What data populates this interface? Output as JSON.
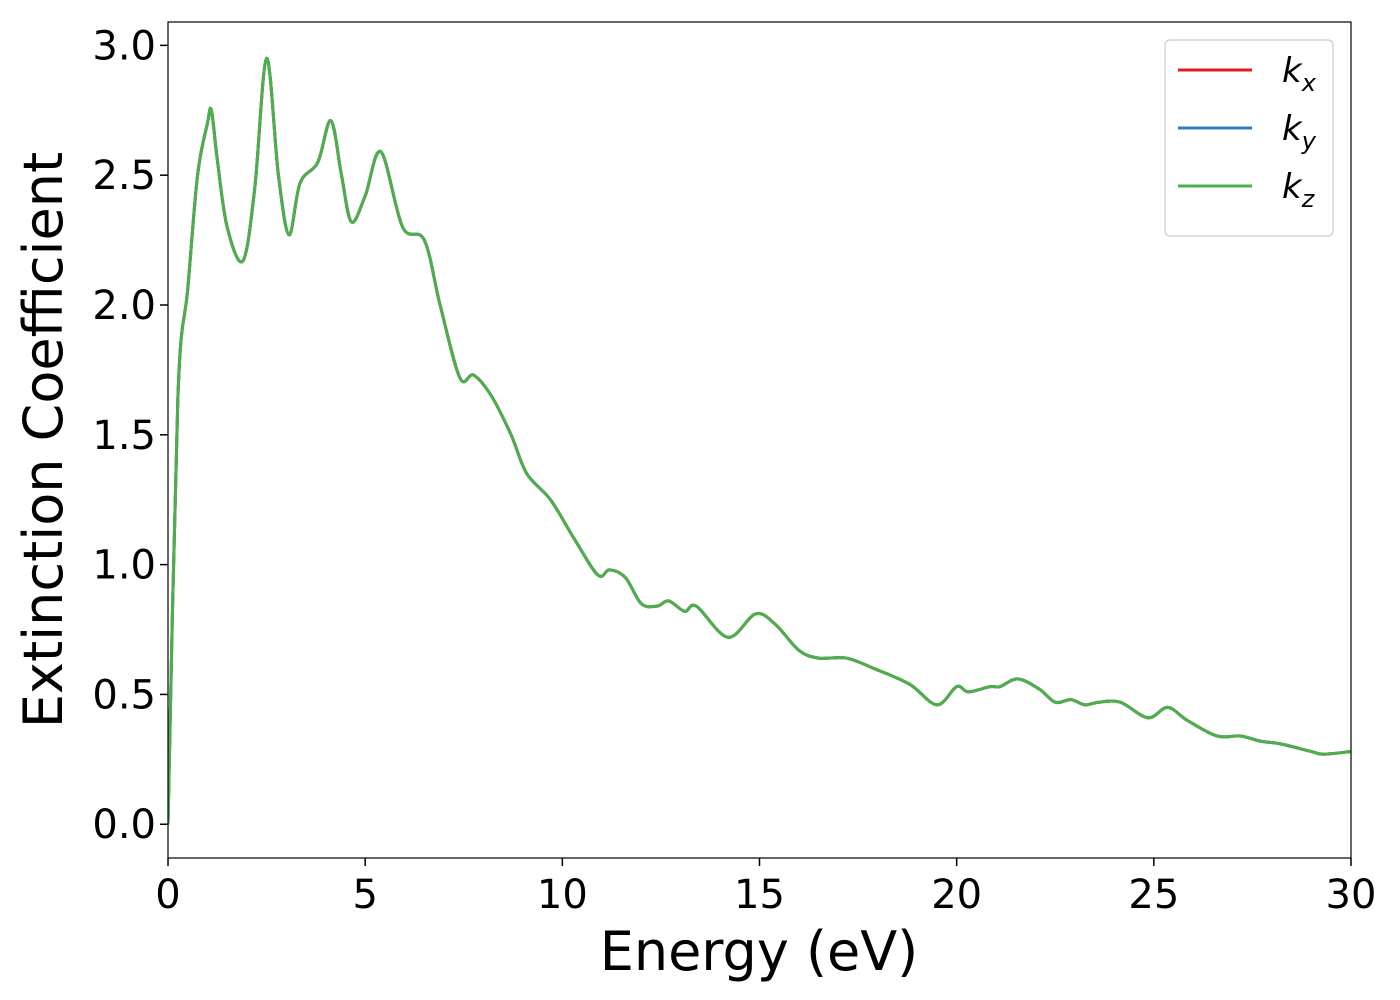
{
  "chart_data": {
    "type": "line",
    "x_label": "Energy (eV)",
    "y_label": "Extinction Coefficient",
    "x": [
      0,
      0.25,
      0.5,
      0.75,
      1.0,
      1.1,
      1.25,
      1.5,
      1.9,
      2.2,
      2.5,
      2.8,
      3.07,
      3.35,
      3.8,
      4.13,
      4.4,
      4.65,
      5.0,
      5.4,
      5.95,
      6.5,
      6.9,
      7.4,
      7.75,
      8.2,
      8.7,
      9.1,
      9.7,
      10.3,
      10.9,
      11.2,
      11.6,
      12.0,
      12.4,
      12.7,
      13.1,
      13.4,
      14.2,
      14.9,
      15.4,
      16.0,
      16.5,
      17.2,
      17.9,
      18.8,
      19.5,
      20.0,
      20.3,
      20.85,
      21.1,
      21.55,
      22.1,
      22.5,
      22.9,
      23.25,
      23.6,
      24.15,
      24.85,
      25.35,
      25.85,
      26.6,
      27.2,
      27.7,
      28.2,
      29.0,
      29.3,
      30.0
    ],
    "series": [
      {
        "name": "kx",
        "color": "#e41a1c",
        "values": [
          0.0,
          1.64,
          2.06,
          2.5,
          2.7,
          2.75,
          2.56,
          2.3,
          2.17,
          2.45,
          2.95,
          2.5,
          2.27,
          2.47,
          2.55,
          2.71,
          2.5,
          2.32,
          2.42,
          2.59,
          2.3,
          2.25,
          2.0,
          1.72,
          1.73,
          1.65,
          1.5,
          1.35,
          1.25,
          1.1,
          0.96,
          0.98,
          0.95,
          0.85,
          0.84,
          0.86,
          0.82,
          0.84,
          0.72,
          0.81,
          0.77,
          0.67,
          0.64,
          0.64,
          0.6,
          0.54,
          0.46,
          0.53,
          0.51,
          0.53,
          0.53,
          0.56,
          0.52,
          0.47,
          0.48,
          0.46,
          0.47,
          0.47,
          0.41,
          0.45,
          0.4,
          0.34,
          0.34,
          0.32,
          0.31,
          0.28,
          0.27,
          0.28
        ]
      },
      {
        "name": "ky",
        "color": "#377eb8",
        "values": [
          0.0,
          1.64,
          2.06,
          2.5,
          2.7,
          2.75,
          2.56,
          2.3,
          2.17,
          2.45,
          2.95,
          2.5,
          2.27,
          2.47,
          2.55,
          2.71,
          2.5,
          2.32,
          2.42,
          2.59,
          2.3,
          2.25,
          2.0,
          1.72,
          1.73,
          1.65,
          1.5,
          1.35,
          1.25,
          1.1,
          0.96,
          0.98,
          0.95,
          0.85,
          0.84,
          0.86,
          0.82,
          0.84,
          0.72,
          0.81,
          0.77,
          0.67,
          0.64,
          0.64,
          0.6,
          0.54,
          0.46,
          0.53,
          0.51,
          0.53,
          0.53,
          0.56,
          0.52,
          0.47,
          0.48,
          0.46,
          0.47,
          0.47,
          0.41,
          0.45,
          0.4,
          0.34,
          0.34,
          0.32,
          0.31,
          0.28,
          0.27,
          0.28
        ]
      },
      {
        "name": "kz",
        "color": "#4daf4a",
        "values": [
          0.0,
          1.64,
          2.06,
          2.5,
          2.7,
          2.75,
          2.56,
          2.3,
          2.17,
          2.45,
          2.95,
          2.5,
          2.27,
          2.47,
          2.55,
          2.71,
          2.5,
          2.32,
          2.42,
          2.59,
          2.3,
          2.25,
          2.0,
          1.72,
          1.73,
          1.65,
          1.5,
          1.35,
          1.25,
          1.1,
          0.96,
          0.98,
          0.95,
          0.85,
          0.84,
          0.86,
          0.82,
          0.84,
          0.72,
          0.81,
          0.77,
          0.67,
          0.64,
          0.64,
          0.6,
          0.54,
          0.46,
          0.53,
          0.51,
          0.53,
          0.53,
          0.56,
          0.52,
          0.47,
          0.48,
          0.46,
          0.47,
          0.47,
          0.41,
          0.45,
          0.4,
          0.34,
          0.34,
          0.32,
          0.31,
          0.28,
          0.27,
          0.28
        ]
      }
    ],
    "xlim": [
      0,
      30
    ],
    "xticks": [
      0,
      5,
      10,
      15,
      20,
      25,
      30
    ],
    "ylim": [
      -0.13,
      3.09
    ],
    "yticks": [
      {
        "value": 0,
        "label": "0.0"
      },
      0.5,
      {
        "value": 1,
        "label": "1.0"
      },
      1.5,
      {
        "value": 2,
        "label": "2.0"
      },
      2.5,
      {
        "value": 3,
        "label": "3.0"
      }
    ],
    "legend": "upper right",
    "grid": false
  }
}
